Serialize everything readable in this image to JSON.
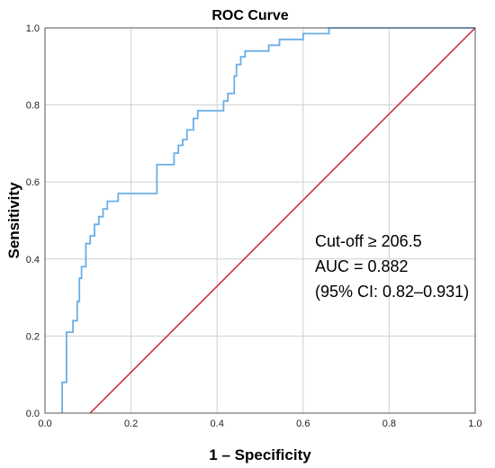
{
  "chart_data": {
    "type": "line",
    "title": "ROC Curve",
    "xlabel": "1 – Specificity",
    "ylabel": "Sensitivity",
    "xlim": [
      0.0,
      1.0
    ],
    "ylim": [
      0.0,
      1.0
    ],
    "x_ticks": [
      "0.0",
      "0.2",
      "0.4",
      "0.6",
      "0.8",
      "1.0"
    ],
    "y_ticks": [
      "0.0",
      "0.2",
      "0.4",
      "0.6",
      "0.8",
      "1.0"
    ],
    "grid": true,
    "series": [
      {
        "color": "#6aaee6",
        "style": "step",
        "points": [
          [
            0.04,
            0.0
          ],
          [
            0.04,
            0.08
          ],
          [
            0.05,
            0.08
          ],
          [
            0.05,
            0.21
          ],
          [
            0.065,
            0.21
          ],
          [
            0.065,
            0.24
          ],
          [
            0.075,
            0.24
          ],
          [
            0.075,
            0.29
          ],
          [
            0.08,
            0.29
          ],
          [
            0.08,
            0.35
          ],
          [
            0.085,
            0.35
          ],
          [
            0.085,
            0.38
          ],
          [
            0.095,
            0.38
          ],
          [
            0.095,
            0.44
          ],
          [
            0.105,
            0.44
          ],
          [
            0.105,
            0.46
          ],
          [
            0.115,
            0.46
          ],
          [
            0.115,
            0.49
          ],
          [
            0.125,
            0.49
          ],
          [
            0.125,
            0.51
          ],
          [
            0.135,
            0.51
          ],
          [
            0.135,
            0.53
          ],
          [
            0.145,
            0.53
          ],
          [
            0.145,
            0.55
          ],
          [
            0.17,
            0.55
          ],
          [
            0.17,
            0.57
          ],
          [
            0.26,
            0.57
          ],
          [
            0.26,
            0.645
          ],
          [
            0.3,
            0.645
          ],
          [
            0.3,
            0.675
          ],
          [
            0.31,
            0.675
          ],
          [
            0.31,
            0.695
          ],
          [
            0.32,
            0.695
          ],
          [
            0.32,
            0.71
          ],
          [
            0.33,
            0.71
          ],
          [
            0.33,
            0.735
          ],
          [
            0.345,
            0.735
          ],
          [
            0.345,
            0.765
          ],
          [
            0.355,
            0.765
          ],
          [
            0.355,
            0.785
          ],
          [
            0.415,
            0.785
          ],
          [
            0.415,
            0.81
          ],
          [
            0.425,
            0.81
          ],
          [
            0.425,
            0.83
          ],
          [
            0.44,
            0.83
          ],
          [
            0.44,
            0.875
          ],
          [
            0.445,
            0.875
          ],
          [
            0.445,
            0.905
          ],
          [
            0.455,
            0.905
          ],
          [
            0.455,
            0.925
          ],
          [
            0.465,
            0.925
          ],
          [
            0.465,
            0.94
          ],
          [
            0.52,
            0.94
          ],
          [
            0.52,
            0.955
          ],
          [
            0.545,
            0.955
          ],
          [
            0.545,
            0.97
          ],
          [
            0.6,
            0.97
          ],
          [
            0.6,
            0.985
          ],
          [
            0.66,
            0.985
          ],
          [
            0.66,
            1.0
          ],
          [
            1.0,
            1.0
          ]
        ]
      },
      {
        "color": "#c8283c",
        "style": "line",
        "points": [
          [
            0.105,
            0.0
          ],
          [
            1.0,
            1.0
          ]
        ]
      }
    ],
    "annotations": [
      "Cut-off ≥ 206.5",
      "AUC = 0.882",
      "(95% CI: 0.82–0.931)"
    ]
  }
}
